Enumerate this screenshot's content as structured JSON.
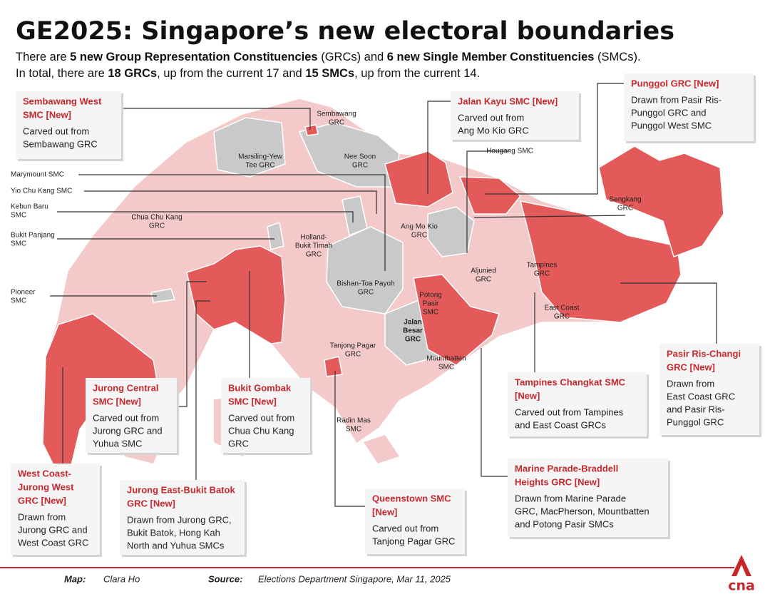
{
  "title": "GE2025: Singapore’s new electoral boundaries",
  "subtitle": {
    "line1": [
      "There are ",
      "5 new Group Representation Constituencies",
      " (GRCs) and ",
      "6 new Single Member Constituencies",
      " (SMCs)."
    ],
    "line2": [
      "In total, there are ",
      "18 GRCs",
      ", up from the current 17 and ",
      "15 SMCs",
      ", up from the current 14."
    ]
  },
  "map_labels": [
    [
      "Sembawang",
      "GRC"
    ],
    [
      "Marsiling-Yew",
      "Tee GRC"
    ],
    [
      "Nee Soon",
      "GRC"
    ],
    [
      "Chua Chu Kang",
      "GRC"
    ],
    [
      "Holland-",
      "Bukit Timah",
      "GRC"
    ],
    [
      "Ang Mo Kio",
      "GRC"
    ],
    [
      "Bishan-Toa Payoh",
      "GRC"
    ],
    [
      "Potong",
      "Pasir",
      "SMC"
    ],
    [
      "Aljunied",
      "GRC"
    ],
    [
      "Tampines",
      "GRC"
    ],
    [
      "East Coast",
      "GRC"
    ],
    [
      "Jalan",
      "Besar",
      "GRC"
    ],
    [
      "Tanjong Pagar",
      "GRC"
    ],
    [
      "Mountbatten",
      "SMC"
    ],
    [
      "Radin Mas",
      "SMC"
    ],
    [
      "Sengkang",
      "GRC"
    ],
    [
      "Hougang SMC"
    ]
  ],
  "side_labels": [
    [
      "Marymount SMC"
    ],
    [
      "Yio Chu Kang SMC"
    ],
    [
      "Kebun Baru",
      "SMC"
    ],
    [
      "Bukit Panjang",
      "SMC"
    ],
    [
      "Pioneer",
      "SMC"
    ]
  ],
  "callouts": [
    {
      "title": [
        "Sembawang West",
        "SMC [New]"
      ],
      "body": [
        "Carved out from",
        "Sembawang GRC"
      ]
    },
    {
      "title": [
        "Jalan Kayu SMC [New]"
      ],
      "body": [
        "Carved out from",
        "Ang Mo Kio GRC"
      ]
    },
    {
      "title": [
        "Punggol GRC [New]"
      ],
      "body": [
        "Drawn from Pasir Ris-",
        "Punggol GRC and",
        "Punggol West SMC"
      ]
    },
    {
      "title": [
        "Jurong Central",
        "SMC [New]"
      ],
      "body": [
        "Carved out from",
        "Jurong GRC and",
        "Yuhua SMC"
      ]
    },
    {
      "title": [
        "Bukit Gombak",
        "SMC [New]"
      ],
      "body": [
        "Carved out from",
        "Chua Chu Kang",
        "GRC"
      ]
    },
    {
      "title": [
        "Tampines Changkat SMC",
        "[New]"
      ],
      "body": [
        "Carved out from Tampines",
        "and East Coast GRCs"
      ]
    },
    {
      "title": [
        "Pasir Ris-Changi",
        "GRC [New]"
      ],
      "body": [
        "Drawn from",
        "East Coast GRC",
        "and Pasir Ris-",
        "Punggol GRC"
      ]
    },
    {
      "title": [
        "West Coast-",
        "Jurong West",
        "GRC [New]"
      ],
      "body": [
        "Drawn from",
        "Jurong GRC and",
        "West Coast GRC"
      ]
    },
    {
      "title": [
        "Jurong East-Bukit Batok",
        "GRC [New]"
      ],
      "body": [
        "Drawn from Jurong GRC,",
        "Bukit Batok, Hong Kah",
        "North and Yuhua SMCs"
      ]
    },
    {
      "title": [
        "Queenstown SMC",
        "[New]"
      ],
      "body": [
        "Carved out from",
        "Tanjong Pagar GRC"
      ]
    },
    {
      "title": [
        "Marine Parade-Braddell",
        "Heights GRC [New]"
      ],
      "body": [
        "Drawn from Marine Parade",
        "GRC, MacPherson, Mountbatten",
        "and Potong Pasir SMCs"
      ]
    }
  ],
  "footer": {
    "map_label": "Map:",
    "map_credit": "Clara Ho",
    "source_label": "Source:",
    "source": "Elections Department Singapore, Mar 11, 2025"
  },
  "logo": "cna"
}
